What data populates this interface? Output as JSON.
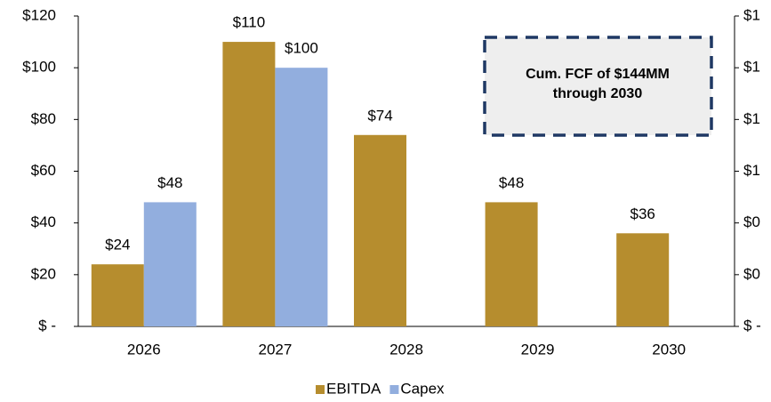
{
  "chart_data": {
    "type": "bar",
    "categories": [
      "2026",
      "2027",
      "2028",
      "2029",
      "2030"
    ],
    "series": [
      {
        "name": "EBITDA",
        "color": "#b68d2e",
        "values": [
          24,
          110,
          74,
          48,
          36
        ],
        "value_labels": [
          "$24",
          "$110",
          "$74",
          "$48",
          "$36"
        ]
      },
      {
        "name": "Capex",
        "color": "#92aede",
        "values": [
          48,
          100,
          null,
          null,
          null
        ],
        "value_labels": [
          "$48",
          "$100",
          null,
          null,
          null
        ]
      }
    ],
    "ylim": [
      0,
      120
    ],
    "yticks": [
      {
        "value": 0,
        "label": "$ -"
      },
      {
        "value": 20,
        "label": "$20"
      },
      {
        "value": 40,
        "label": "$40"
      },
      {
        "value": 60,
        "label": "$60"
      },
      {
        "value": 80,
        "label": "$80"
      },
      {
        "value": 100,
        "label": "$100"
      },
      {
        "value": 120,
        "label": "$120"
      }
    ],
    "y2_tick_labels": [
      "$ -",
      "$0",
      "$0",
      "$1",
      "$1",
      "$1",
      "$1"
    ],
    "annotation": [
      "Cum. FCF of $144MM",
      "through 2030"
    ],
    "legend": "bottom",
    "grid": false
  }
}
